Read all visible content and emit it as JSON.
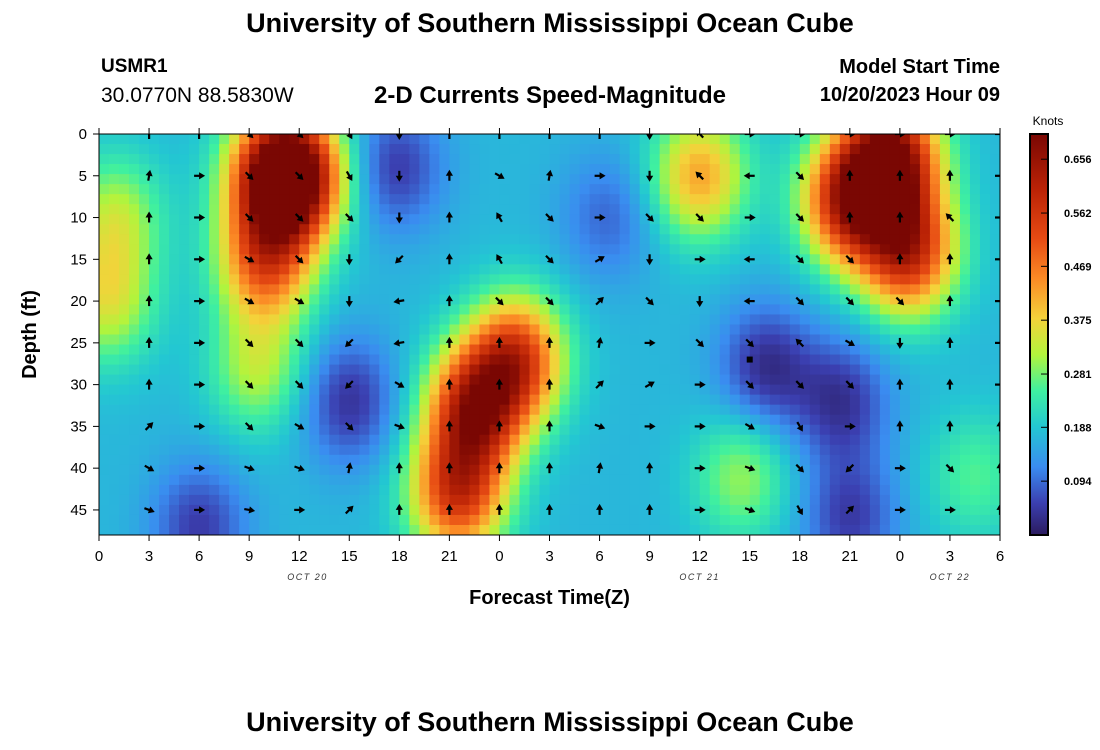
{
  "header": {
    "title": "University of Southern Mississippi Ocean Cube",
    "station_id": "USMR1",
    "station_coords": "30.0770N  88.5830W",
    "subtitle": "2-D Currents Speed-Magnitude",
    "model_start_label": "Model Start Time",
    "model_start_value": "10/20/2023 Hour 09"
  },
  "footer": {
    "title": "University of Southern Mississippi Ocean Cube"
  },
  "chart_data": {
    "type": "heatmap",
    "title": "2-D Currents Speed-Magnitude",
    "xlabel": "Forecast Time(Z)",
    "ylabel": "Depth (ft)",
    "x_hours": [
      0,
      3,
      6,
      9,
      12,
      15,
      18,
      21,
      24,
      27,
      30,
      33,
      36,
      39,
      42,
      45,
      48,
      51,
      54
    ],
    "x_tick_labels": [
      "0",
      "3",
      "6",
      "9",
      "12",
      "15",
      "18",
      "21",
      "0",
      "3",
      "6",
      "9",
      "12",
      "15",
      "18",
      "21",
      "0",
      "3",
      "6"
    ],
    "x_range": [
      0,
      54
    ],
    "date_labels": [
      {
        "hour": 12.5,
        "text": "OCT 20"
      },
      {
        "hour": 36,
        "text": "OCT 21"
      },
      {
        "hour": 51,
        "text": "OCT 22"
      }
    ],
    "depths_ft": [
      0,
      5,
      10,
      15,
      20,
      25,
      30,
      35,
      40,
      45
    ],
    "y_range": [
      0,
      48
    ],
    "colorbar": {
      "label": "Knots",
      "ticks": [
        "0.656",
        "0.562",
        "0.469",
        "0.375",
        "0.281",
        "0.188",
        "0.094"
      ],
      "min": 0.0,
      "max": 0.7
    },
    "speed_hotspots": [
      {
        "hour": 0.5,
        "depth": 20,
        "speed": 0.34
      },
      {
        "hour": 1.0,
        "depth": 10,
        "speed": 0.32
      },
      {
        "hour": 10.5,
        "depth": 5,
        "speed": 0.58
      },
      {
        "hour": 10.0,
        "depth": 15,
        "speed": 0.5
      },
      {
        "hour": 9.5,
        "depth": 28,
        "speed": 0.32
      },
      {
        "hour": 12.0,
        "depth": 5,
        "speed": 0.56
      },
      {
        "hour": 22.5,
        "depth": 33,
        "speed": 0.6
      },
      {
        "hour": 25.0,
        "depth": 27,
        "speed": 0.55
      },
      {
        "hour": 21.5,
        "depth": 43,
        "speed": 0.55
      },
      {
        "hour": 47.5,
        "depth": 3,
        "speed": 0.68
      },
      {
        "hour": 45.0,
        "depth": 8,
        "speed": 0.6
      },
      {
        "hour": 48.5,
        "depth": 14,
        "speed": 0.58
      },
      {
        "hour": 36.0,
        "depth": 5,
        "speed": 0.42
      },
      {
        "hour": 38.5,
        "depth": 41,
        "speed": 0.3
      },
      {
        "hour": 52.5,
        "depth": 41,
        "speed": 0.26
      }
    ],
    "speed_lows": [
      {
        "hour": 6.0,
        "depth": 47,
        "speed": 0.05
      },
      {
        "hour": 15.0,
        "depth": 32,
        "speed": 0.04
      },
      {
        "hour": 17.8,
        "depth": 4,
        "speed": 0.05
      },
      {
        "hour": 30.5,
        "depth": 10,
        "speed": 0.09
      },
      {
        "hour": 40.0,
        "depth": 28,
        "speed": 0.03
      },
      {
        "hour": 44.5,
        "depth": 32,
        "speed": 0.04
      },
      {
        "hour": 45.0,
        "depth": 46,
        "speed": 0.05
      }
    ],
    "vectors": {
      "hours": [
        3,
        6,
        9,
        12,
        15,
        18,
        21,
        24,
        27,
        30,
        33,
        36,
        39,
        42,
        45,
        48,
        51,
        54
      ],
      "depths": [
        0,
        5,
        10,
        15,
        20,
        25,
        30,
        35,
        40,
        45
      ],
      "angles_deg": [
        [
          -90,
          -90,
          45,
          45,
          60,
          90,
          -90,
          -90,
          -90,
          -90,
          90,
          -135,
          0,
          0,
          0,
          0,
          0,
          0
        ],
        [
          -80,
          0,
          45,
          45,
          60,
          90,
          -90,
          30,
          -80,
          0,
          90,
          -135,
          180,
          45,
          -90,
          -90,
          -90,
          0
        ],
        [
          -90,
          0,
          45,
          45,
          45,
          90,
          -90,
          -120,
          45,
          0,
          45,
          45,
          0,
          45,
          -90,
          -90,
          -135,
          0
        ],
        [
          -90,
          0,
          30,
          45,
          90,
          135,
          -90,
          -120,
          45,
          -30,
          90,
          0,
          180,
          45,
          45,
          -90,
          -90,
          0
        ],
        [
          -90,
          0,
          30,
          30,
          90,
          170,
          -90,
          45,
          45,
          -45,
          45,
          90,
          180,
          45,
          45,
          45,
          -90,
          0
        ],
        [
          -90,
          0,
          45,
          45,
          135,
          170,
          -90,
          -90,
          -90,
          -80,
          0,
          45,
          45,
          -135,
          30,
          90,
          -90,
          0
        ],
        [
          -90,
          0,
          45,
          45,
          135,
          30,
          -90,
          -90,
          -90,
          -45,
          -30,
          0,
          45,
          45,
          45,
          -90,
          -90,
          0
        ],
        [
          -45,
          0,
          45,
          30,
          45,
          20,
          -90,
          -90,
          -90,
          20,
          0,
          0,
          30,
          60,
          0,
          -90,
          -90,
          -90
        ],
        [
          30,
          0,
          20,
          20,
          -80,
          -90,
          -90,
          -90,
          -90,
          -80,
          -90,
          0,
          20,
          45,
          135,
          0,
          45,
          -90
        ],
        [
          20,
          0,
          10,
          0,
          -45,
          -90,
          -90,
          -90,
          -90,
          -90,
          -90,
          0,
          20,
          60,
          -45,
          0,
          0,
          -90
        ]
      ]
    },
    "marker": {
      "hour": 39,
      "depth": 27,
      "symbol": "square"
    }
  }
}
